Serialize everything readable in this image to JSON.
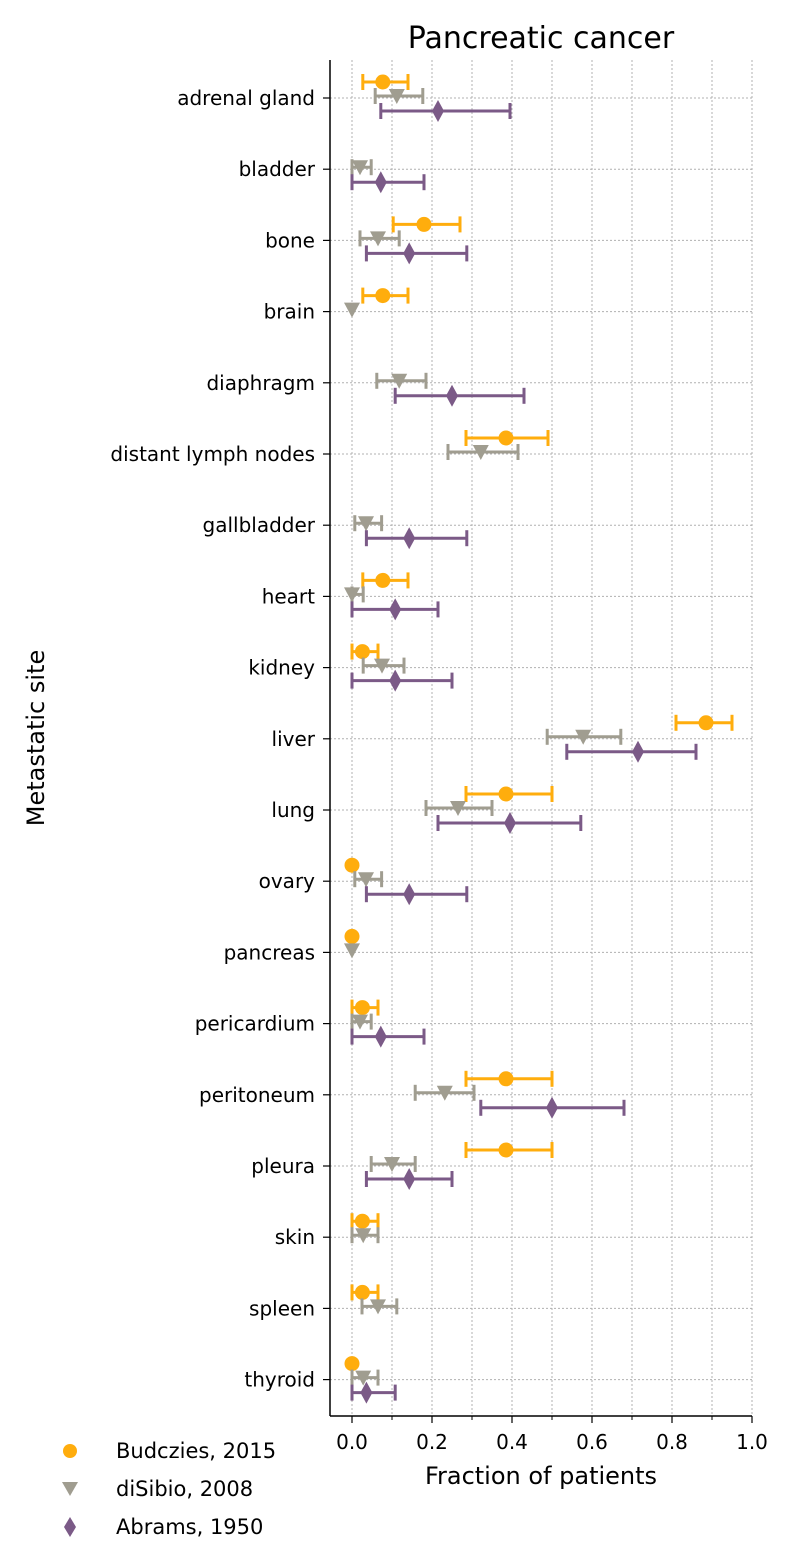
{
  "chart_data": {
    "type": "scatter",
    "title": "Pancreatic cancer",
    "xlabel": "Fraction of patients",
    "ylabel": "Metastatic site",
    "xlim": [
      -0.055,
      1.0
    ],
    "xticks": [
      0.0,
      0.2,
      0.4,
      0.6,
      0.8,
      1.0
    ],
    "xtick_labels": [
      "0.0",
      "0.2",
      "0.4",
      "0.6",
      "0.8",
      "1.0"
    ],
    "grid": true,
    "legend_position": "bottom-left, below chart",
    "categories": [
      "adrenal gland",
      "bladder",
      "bone",
      "brain",
      "diaphragm",
      "distant lymph nodes",
      "gallbladder",
      "heart",
      "kidney",
      "liver",
      "lung",
      "ovary",
      "pancreas",
      "pericardium",
      "peritoneum",
      "pleura",
      "skin",
      "spleen",
      "thyroid"
    ],
    "series": [
      {
        "name": "Budczies, 2015",
        "color": "#ffad0d",
        "marker": "circle",
        "points": [
          {
            "category": "adrenal gland",
            "value": 0.077,
            "lo": 0.027,
            "hi": 0.14
          },
          {
            "category": "bone",
            "value": 0.18,
            "lo": 0.103,
            "hi": 0.27
          },
          {
            "category": "brain",
            "value": 0.077,
            "lo": 0.027,
            "hi": 0.14
          },
          {
            "category": "distant lymph nodes",
            "value": 0.385,
            "lo": 0.285,
            "hi": 0.49
          },
          {
            "category": "heart",
            "value": 0.077,
            "lo": 0.027,
            "hi": 0.14
          },
          {
            "category": "kidney",
            "value": 0.026,
            "lo": 0.0,
            "hi": 0.065
          },
          {
            "category": "liver",
            "value": 0.885,
            "lo": 0.81,
            "hi": 0.95
          },
          {
            "category": "lung",
            "value": 0.385,
            "lo": 0.285,
            "hi": 0.5
          },
          {
            "category": "ovary",
            "value": 0.0,
            "lo": 0.0,
            "hi": 0.0
          },
          {
            "category": "pancreas",
            "value": 0.0,
            "lo": 0.0,
            "hi": 0.0
          },
          {
            "category": "pericardium",
            "value": 0.026,
            "lo": 0.0,
            "hi": 0.065
          },
          {
            "category": "peritoneum",
            "value": 0.385,
            "lo": 0.285,
            "hi": 0.5
          },
          {
            "category": "pleura",
            "value": 0.385,
            "lo": 0.285,
            "hi": 0.5
          },
          {
            "category": "skin",
            "value": 0.026,
            "lo": 0.0,
            "hi": 0.065
          },
          {
            "category": "spleen",
            "value": 0.026,
            "lo": 0.0,
            "hi": 0.065
          },
          {
            "category": "thyroid",
            "value": 0.0,
            "lo": 0.0,
            "hi": 0.0
          }
        ]
      },
      {
        "name": "diSibio, 2008",
        "color": "#a09d90",
        "marker": "triangle-down",
        "points": [
          {
            "category": "adrenal gland",
            "value": 0.112,
            "lo": 0.058,
            "hi": 0.177
          },
          {
            "category": "bladder",
            "value": 0.02,
            "lo": 0.0,
            "hi": 0.048
          },
          {
            "category": "bone",
            "value": 0.065,
            "lo": 0.02,
            "hi": 0.118
          },
          {
            "category": "brain",
            "value": 0.0,
            "lo": 0.0,
            "hi": 0.0
          },
          {
            "category": "diaphragm",
            "value": 0.118,
            "lo": 0.062,
            "hi": 0.185
          },
          {
            "category": "distant lymph nodes",
            "value": 0.322,
            "lo": 0.24,
            "hi": 0.415
          },
          {
            "category": "gallbladder",
            "value": 0.035,
            "lo": 0.007,
            "hi": 0.074
          },
          {
            "category": "heart",
            "value": 0.0,
            "lo": 0.0,
            "hi": 0.028
          },
          {
            "category": "kidney",
            "value": 0.075,
            "lo": 0.028,
            "hi": 0.13
          },
          {
            "category": "liver",
            "value": 0.578,
            "lo": 0.488,
            "hi": 0.672
          },
          {
            "category": "lung",
            "value": 0.265,
            "lo": 0.185,
            "hi": 0.35
          },
          {
            "category": "ovary",
            "value": 0.035,
            "lo": 0.007,
            "hi": 0.074
          },
          {
            "category": "pancreas",
            "value": 0.0,
            "lo": 0.0,
            "hi": 0.0
          },
          {
            "category": "pericardium",
            "value": 0.02,
            "lo": 0.0,
            "hi": 0.048
          },
          {
            "category": "peritoneum",
            "value": 0.232,
            "lo": 0.158,
            "hi": 0.305
          },
          {
            "category": "pleura",
            "value": 0.1,
            "lo": 0.048,
            "hi": 0.158
          },
          {
            "category": "skin",
            "value": 0.028,
            "lo": 0.0,
            "hi": 0.065
          },
          {
            "category": "spleen",
            "value": 0.065,
            "lo": 0.025,
            "hi": 0.112
          },
          {
            "category": "thyroid",
            "value": 0.028,
            "lo": 0.0,
            "hi": 0.065
          }
        ]
      },
      {
        "name": "Abrams, 1950",
        "color": "#7b5a87",
        "marker": "diamond",
        "points": [
          {
            "category": "adrenal gland",
            "value": 0.215,
            "lo": 0.072,
            "hi": 0.395
          },
          {
            "category": "bladder",
            "value": 0.072,
            "lo": 0.0,
            "hi": 0.18
          },
          {
            "category": "bone",
            "value": 0.143,
            "lo": 0.036,
            "hi": 0.287
          },
          {
            "category": "diaphragm",
            "value": 0.25,
            "lo": 0.108,
            "hi": 0.43
          },
          {
            "category": "gallbladder",
            "value": 0.143,
            "lo": 0.036,
            "hi": 0.287
          },
          {
            "category": "heart",
            "value": 0.108,
            "lo": 0.0,
            "hi": 0.215
          },
          {
            "category": "kidney",
            "value": 0.108,
            "lo": 0.0,
            "hi": 0.25
          },
          {
            "category": "liver",
            "value": 0.715,
            "lo": 0.537,
            "hi": 0.86
          },
          {
            "category": "lung",
            "value": 0.395,
            "lo": 0.215,
            "hi": 0.572
          },
          {
            "category": "ovary",
            "value": 0.143,
            "lo": 0.036,
            "hi": 0.287
          },
          {
            "category": "pericardium",
            "value": 0.072,
            "lo": 0.0,
            "hi": 0.18
          },
          {
            "category": "peritoneum",
            "value": 0.5,
            "lo": 0.322,
            "hi": 0.68
          },
          {
            "category": "pleura",
            "value": 0.143,
            "lo": 0.036,
            "hi": 0.25
          },
          {
            "category": "thyroid",
            "value": 0.036,
            "lo": 0.0,
            "hi": 0.108
          }
        ]
      }
    ]
  }
}
